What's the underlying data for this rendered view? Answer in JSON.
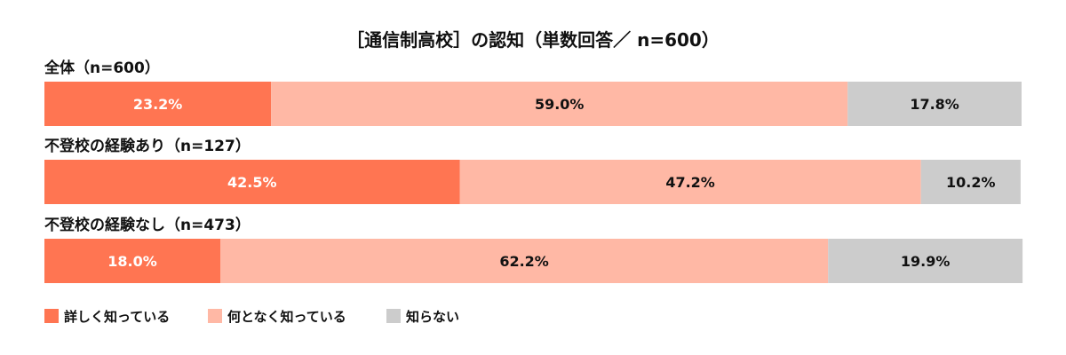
{
  "chart_data": {
    "type": "bar",
    "orientation": "horizontal",
    "stacked": true,
    "percent": true,
    "title": "［通信制高校］の認知（単数回答／ n=600）",
    "categories": [
      "全体（n=600）",
      "不登校の経験あり（n=127）",
      "不登校の経験なし（n=473）"
    ],
    "series": [
      {
        "name": "詳しく知っている",
        "color": "#FF7552",
        "values": [
          23.2,
          42.5,
          18.0
        ],
        "labels": [
          "23.2%",
          "42.5%",
          "18.0%"
        ],
        "label_color": "#ffffff"
      },
      {
        "name": "何となく知っている",
        "color": "#FFB8A5",
        "values": [
          59.0,
          47.2,
          62.2
        ],
        "labels": [
          "59.0%",
          "47.2%",
          "62.2%"
        ],
        "label_color": "#111111"
      },
      {
        "name": "知らない",
        "color": "#CCCCCC",
        "values": [
          17.8,
          10.2,
          19.9
        ],
        "labels": [
          "17.8%",
          "10.2%",
          "19.9%"
        ],
        "label_color": "#111111"
      }
    ],
    "xlim": [
      0,
      100
    ],
    "legend_position": "bottom-left",
    "grid": false
  }
}
